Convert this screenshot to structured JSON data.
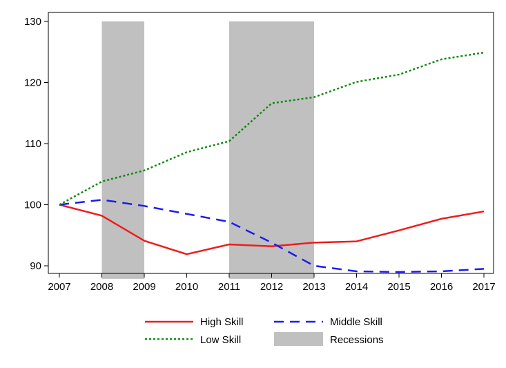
{
  "chart_data": {
    "type": "line",
    "title": "",
    "xlabel": "",
    "ylabel": "",
    "x": [
      2007,
      2008,
      2009,
      2010,
      2011,
      2012,
      2013,
      2014,
      2015,
      2016,
      2017
    ],
    "xlim": [
      2007,
      2017
    ],
    "ylim": [
      88,
      130
    ],
    "x_ticks": [
      2007,
      2008,
      2009,
      2010,
      2011,
      2012,
      2013,
      2014,
      2015,
      2016,
      2017
    ],
    "y_ticks": [
      90,
      100,
      110,
      120,
      130
    ],
    "grid": false,
    "legend_position": "bottom",
    "recessions": [
      {
        "start": 2008,
        "end": 2009
      },
      {
        "start": 2011,
        "end": 2013
      }
    ],
    "recession_band_range": [
      89,
      130
    ],
    "recession_color": "#c0c0c0",
    "series": [
      {
        "name": "High Skill",
        "color": "#ee1c1c",
        "style": "solid",
        "values": [
          100,
          98.2,
          94.1,
          91.9,
          93.5,
          93.2,
          93.8,
          94.0,
          95.8,
          97.7,
          98.9
        ]
      },
      {
        "name": "Middle Skill",
        "color": "#1c1cee",
        "style": "dashed",
        "values": [
          100,
          100.8,
          99.8,
          98.5,
          97.2,
          93.8,
          90.0,
          89.1,
          89.0,
          89.1,
          89.5
        ]
      },
      {
        "name": "Low Skill",
        "color": "#128a12",
        "style": "dotted",
        "values": [
          100,
          103.8,
          105.6,
          108.6,
          110.4,
          116.6,
          117.6,
          120.1,
          121.3,
          123.8,
          124.9
        ]
      }
    ],
    "legend": [
      {
        "label": "High Skill",
        "series": "High Skill"
      },
      {
        "label": "Middle Skill",
        "series": "Middle Skill"
      },
      {
        "label": "Low Skill",
        "series": "Low Skill"
      },
      {
        "label": "Recessions",
        "series": "recessions"
      }
    ]
  }
}
